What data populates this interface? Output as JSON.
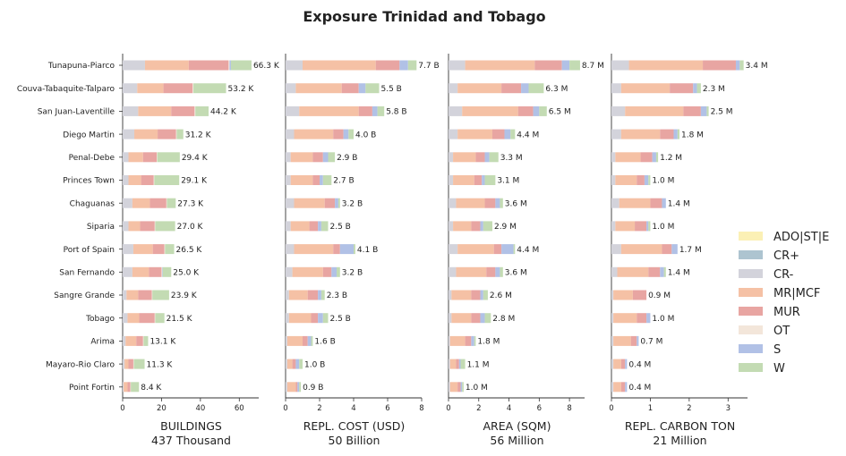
{
  "chart_data": {
    "type": "bar",
    "orientation": "horizontal",
    "stacked": true,
    "title": "Exposure Trinidad and Tobago",
    "categories": [
      "Tunapuna-Piarco",
      "Couva-Tabaquite-Talparo",
      "San Juan-Laventille",
      "Diego Martin",
      "Penal-Debe",
      "Princes Town",
      "Chaguanas",
      "Siparia",
      "Port of Spain",
      "San Fernando",
      "Sangre Grande",
      "Tobago",
      "Arima",
      "Mayaro-Rio Claro",
      "Point Fortin"
    ],
    "legend": {
      "placement": "right",
      "entries": [
        {
          "name": "ADO|ST|E",
          "color": "#fbf0b5"
        },
        {
          "name": "CR+",
          "color": "#adc4d0"
        },
        {
          "name": "CR-",
          "color": "#d3d3db"
        },
        {
          "name": "MR|MCF",
          "color": "#f5c1a5"
        },
        {
          "name": "MUR",
          "color": "#e8a5a2"
        },
        {
          "name": "OT",
          "color": "#f3e6da"
        },
        {
          "name": "S",
          "color": "#b1c1e6"
        },
        {
          "name": "W",
          "color": "#c3dbb3"
        }
      ]
    },
    "panels": [
      {
        "xlabel": "BUILDINGS",
        "sublabel": "437 Thousand",
        "xlim": [
          0,
          70
        ],
        "xticks": [
          0,
          20,
          40,
          60
        ],
        "totals": [
          "66.3 K",
          "53.2 K",
          "44.2 K",
          "31.2 K",
          "29.4 K",
          "29.1 K",
          "27.3 K",
          "27.0 K",
          "26.5 K",
          "25.0 K",
          "23.9 K",
          "21.5 K",
          "13.1 K",
          "11.3 K",
          "8.4 K"
        ],
        "segments": [
          [
            0,
            0,
            11.5,
            22.5,
            20.5,
            0.5,
            0.7,
            10.6
          ],
          [
            0,
            0,
            7.5,
            13.5,
            15,
            0.4,
            0,
            16.8
          ],
          [
            0,
            0,
            8,
            17,
            12,
            0.4,
            0,
            6.8
          ],
          [
            0,
            0,
            6,
            12,
            9.5,
            0.3,
            0,
            3.4
          ],
          [
            0,
            0,
            3,
            7.5,
            7,
            0.3,
            0,
            11.6
          ],
          [
            0,
            0,
            3,
            6.5,
            6.5,
            0.3,
            0,
            12.8
          ],
          [
            0,
            0,
            5,
            9,
            8.5,
            0.3,
            0,
            4.5
          ],
          [
            0,
            0,
            3,
            6,
            7.5,
            0.3,
            0,
            10.2
          ],
          [
            0,
            0,
            5.5,
            10,
            6,
            0.3,
            0,
            4.7
          ],
          [
            0,
            0,
            5,
            8.5,
            6.5,
            0.3,
            0.3,
            4.4
          ],
          [
            0,
            0,
            2,
            6,
            7,
            0.3,
            0,
            8.6
          ],
          [
            0,
            0,
            2.5,
            6,
            8,
            0.3,
            0,
            4.7
          ],
          [
            0,
            0,
            1.5,
            5.5,
            3.5,
            0.3,
            0,
            2.3
          ],
          [
            0,
            0,
            1,
            2,
            2.5,
            0.3,
            0,
            5.5
          ],
          [
            0,
            0,
            0.5,
            2,
            1.5,
            0.2,
            0,
            4.2
          ]
        ]
      },
      {
        "xlabel": "REPL. COST (USD)",
        "sublabel": "50 Billion",
        "xlim": [
          0,
          8
        ],
        "xticks": [
          0,
          2,
          4,
          6,
          8
        ],
        "totals": [
          "7.7 B",
          "5.5 B",
          "5.8 B",
          "4.0 B",
          "2.9 B",
          "2.7 B",
          "3.2 B",
          "2.5 B",
          "4.1 B",
          "3.2 B",
          "2.3 B",
          "2.5 B",
          "1.6 B",
          "1.0 B",
          "0.9 B"
        ],
        "segments": [
          [
            0,
            0,
            1.0,
            4.3,
            1.4,
            0,
            0.5,
            0.5
          ],
          [
            0,
            0,
            0.6,
            2.7,
            1.0,
            0,
            0.4,
            0.8
          ],
          [
            0,
            0,
            0.8,
            3.5,
            0.8,
            0,
            0.3,
            0.4
          ],
          [
            0,
            0,
            0.5,
            2.3,
            0.6,
            0,
            0.3,
            0.3
          ],
          [
            0,
            0,
            0.3,
            1.3,
            0.6,
            0,
            0.3,
            0.4
          ],
          [
            0,
            0,
            0.3,
            1.3,
            0.4,
            0,
            0.2,
            0.5
          ],
          [
            0,
            0,
            0.5,
            1.8,
            0.6,
            0,
            0.2,
            0.1
          ],
          [
            0,
            0,
            0.3,
            1.1,
            0.5,
            0,
            0.2,
            0.4
          ],
          [
            0,
            0,
            0.5,
            2.3,
            0.4,
            0,
            0.8,
            0.1
          ],
          [
            0,
            0,
            0.4,
            1.8,
            0.5,
            0,
            0.3,
            0.2
          ],
          [
            0,
            0,
            0.2,
            1.1,
            0.6,
            0,
            0.2,
            0.2
          ],
          [
            0,
            0,
            0.2,
            1.3,
            0.4,
            0,
            0.3,
            0.3
          ],
          [
            0,
            0,
            0.1,
            0.9,
            0.3,
            0,
            0.2,
            0.1
          ],
          [
            0,
            0,
            0.1,
            0.3,
            0.2,
            0,
            0.2,
            0.2
          ],
          [
            0,
            0,
            0.1,
            0.5,
            0.1,
            0,
            0.1,
            0.1
          ]
        ]
      },
      {
        "xlabel": "AREA (SQM)",
        "sublabel": "56 Million",
        "xlim": [
          0,
          9
        ],
        "xticks": [
          0,
          2,
          4,
          6,
          8
        ],
        "totals": [
          "8.7 M",
          "6.3 M",
          "6.5 M",
          "4.4 M",
          "3.3 M",
          "3.1 M",
          "3.6 M",
          "2.9 M",
          "4.4 M",
          "3.6 M",
          "2.6 M",
          "2.8 M",
          "1.8 M",
          "1.1 M",
          "1.0 M"
        ],
        "segments": [
          [
            0,
            0,
            1.1,
            4.6,
            1.8,
            0,
            0.5,
            0.7
          ],
          [
            0,
            0,
            0.6,
            2.9,
            1.3,
            0,
            0.5,
            1.0
          ],
          [
            0,
            0,
            0.9,
            3.7,
            1.0,
            0,
            0.4,
            0.5
          ],
          [
            0,
            0,
            0.6,
            2.3,
            0.8,
            0,
            0.4,
            0.3
          ],
          [
            0,
            0,
            0.3,
            1.5,
            0.6,
            0,
            0.3,
            0.6
          ],
          [
            0,
            0,
            0.3,
            1.4,
            0.5,
            0,
            0.2,
            0.7
          ],
          [
            0,
            0,
            0.5,
            1.9,
            0.7,
            0,
            0.3,
            0.2
          ],
          [
            0,
            0,
            0.3,
            1.2,
            0.6,
            0,
            0.2,
            0.6
          ],
          [
            0,
            0,
            0.6,
            2.4,
            0.5,
            0,
            0.8,
            0.1
          ],
          [
            0,
            0,
            0.5,
            2.0,
            0.6,
            0,
            0.3,
            0.2
          ],
          [
            0,
            0,
            0.2,
            1.3,
            0.6,
            0,
            0.2,
            0.3
          ],
          [
            0,
            0,
            0.2,
            1.3,
            0.6,
            0,
            0.3,
            0.4
          ],
          [
            0,
            0,
            0.1,
            1.0,
            0.4,
            0,
            0.2,
            0.1
          ],
          [
            0,
            0,
            0.1,
            0.4,
            0.2,
            0,
            0.1,
            0.3
          ],
          [
            0,
            0,
            0.1,
            0.5,
            0.2,
            0,
            0.1,
            0.1
          ]
        ]
      },
      {
        "xlabel": "REPL. CARBON TON",
        "sublabel": "21 Million",
        "xlim": [
          0,
          3.5
        ],
        "xticks": [
          0,
          1,
          2,
          3
        ],
        "totals": [
          "3.4 M",
          "2.3 M",
          "2.5 M",
          "1.8 M",
          "1.2 M",
          "1.0 M",
          "1.4 M",
          "1.0 M",
          "1.7 M",
          "1.4 M",
          "0.9 M",
          "1.0 M",
          "0.7 M",
          "0.4 M",
          "0.4 M"
        ],
        "segments": [
          [
            0,
            0,
            0.45,
            1.9,
            0.85,
            0,
            0.1,
            0.1
          ],
          [
            0,
            0,
            0.25,
            1.25,
            0.6,
            0,
            0.1,
            0.1
          ],
          [
            0,
            0,
            0.35,
            1.5,
            0.45,
            0,
            0.15,
            0.05
          ],
          [
            0,
            0,
            0.25,
            1.0,
            0.35,
            0,
            0.1,
            0.05
          ],
          [
            0,
            0,
            0.1,
            0.65,
            0.3,
            0,
            0.1,
            0.05
          ],
          [
            0,
            0,
            0.1,
            0.55,
            0.2,
            0,
            0.1,
            0.05
          ],
          [
            0,
            0,
            0.2,
            0.8,
            0.3,
            0,
            0.1,
            0.0
          ],
          [
            0,
            0,
            0.1,
            0.5,
            0.3,
            0,
            0.05,
            0.05
          ],
          [
            0,
            0,
            0.25,
            1.05,
            0.25,
            0,
            0.15,
            0.0
          ],
          [
            0,
            0,
            0.15,
            0.8,
            0.3,
            0,
            0.1,
            0.05
          ],
          [
            0,
            0,
            0.05,
            0.5,
            0.35,
            0,
            0.0,
            0.0
          ],
          [
            0,
            0,
            0.05,
            0.6,
            0.25,
            0,
            0.1,
            0.0
          ],
          [
            0,
            0,
            0.05,
            0.45,
            0.15,
            0,
            0.05,
            0.0
          ],
          [
            0,
            0,
            0.05,
            0.2,
            0.1,
            0,
            0.05,
            0.0
          ],
          [
            0,
            0,
            0.05,
            0.2,
            0.1,
            0,
            0.05,
            0.0
          ]
        ]
      }
    ]
  }
}
